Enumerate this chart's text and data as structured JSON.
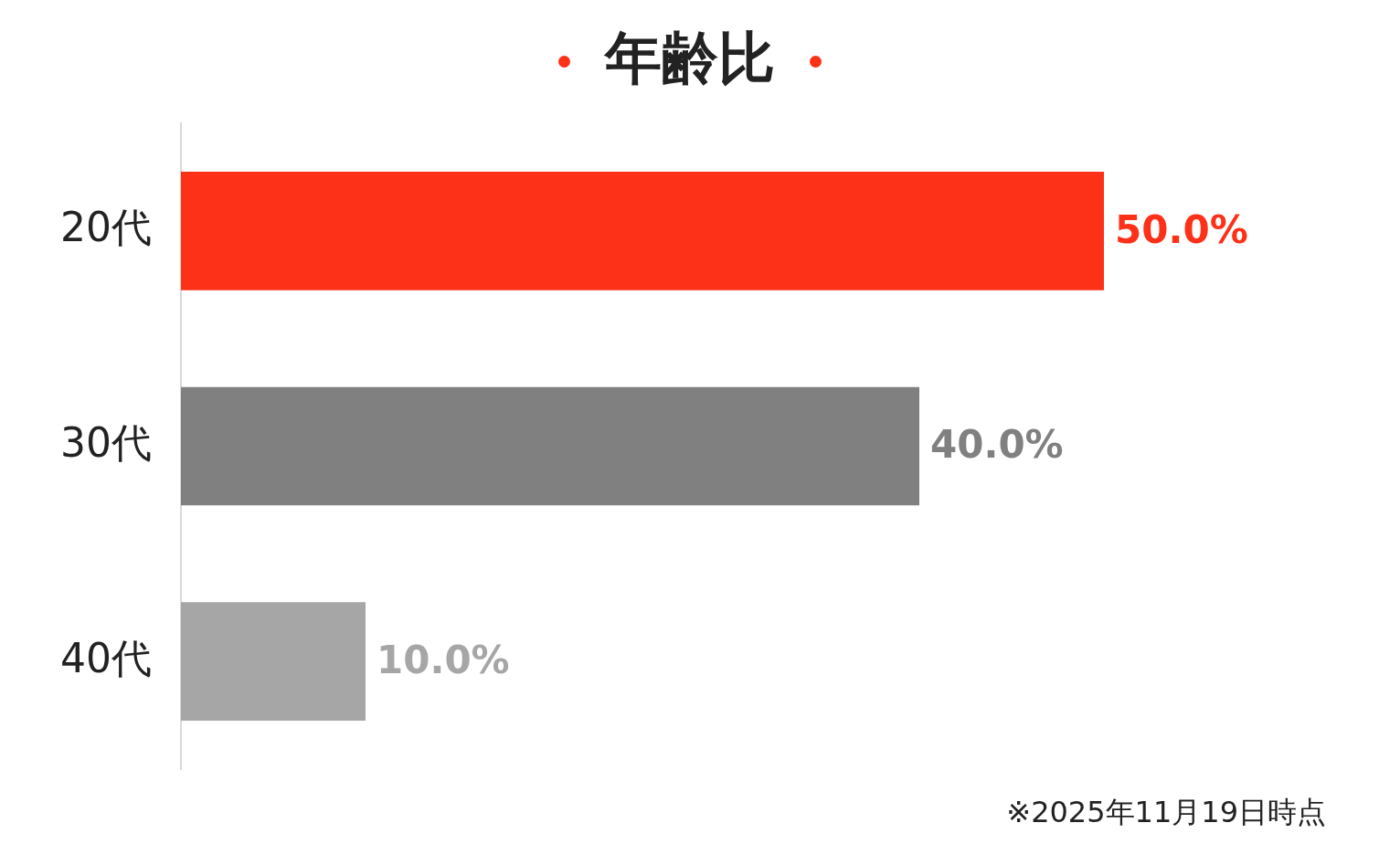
{
  "chart_data": {
    "type": "bar",
    "orientation": "horizontal",
    "title": "年齢比",
    "categories": [
      "20代",
      "30代",
      "40代"
    ],
    "values": [
      50,
      40,
      10
    ],
    "colors": [
      "#fd3018",
      "#808080",
      "#a6a6a6"
    ],
    "value_labels": [
      "50.0%",
      "40.0%",
      "10.0%"
    ],
    "tick_labels": "y",
    "annotations": [
      "※2025年11月19日時点"
    ]
  }
}
